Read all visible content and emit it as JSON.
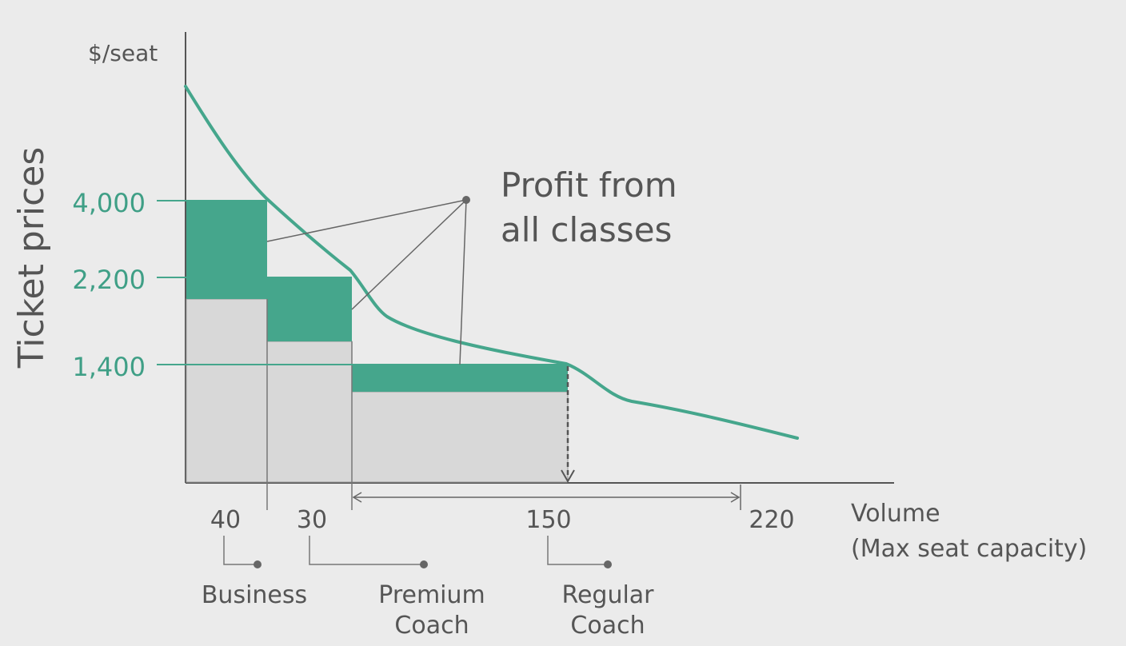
{
  "chart_data": {
    "type": "bar",
    "ylabel": "Ticket prices",
    "yunit": "$/seat",
    "xlabel_line1": "Volume",
    "xlabel_line2": "(Max seat capacity)",
    "y_ticks": [
      "4,000",
      "2,200",
      "1,400"
    ],
    "x_ticks": [
      "40",
      "30",
      "150",
      "220"
    ],
    "annotation_line1": "Profit from",
    "annotation_line2": "all classes",
    "classes": [
      {
        "label_lines": [
          "Business"
        ],
        "seats": 40,
        "price": 4000
      },
      {
        "label_lines": [
          "Premium",
          "Coach"
        ],
        "seats": 30,
        "price": 2200
      },
      {
        "label_lines": [
          "Regular",
          "Coach"
        ],
        "seats": 150,
        "price": 1400
      }
    ],
    "max_capacity": 220,
    "colors": {
      "profit": "#45a68c",
      "cost": "#d8d8d8",
      "curve": "#45a68c",
      "axis": "#555555",
      "teal_text": "#3f9f86"
    }
  }
}
